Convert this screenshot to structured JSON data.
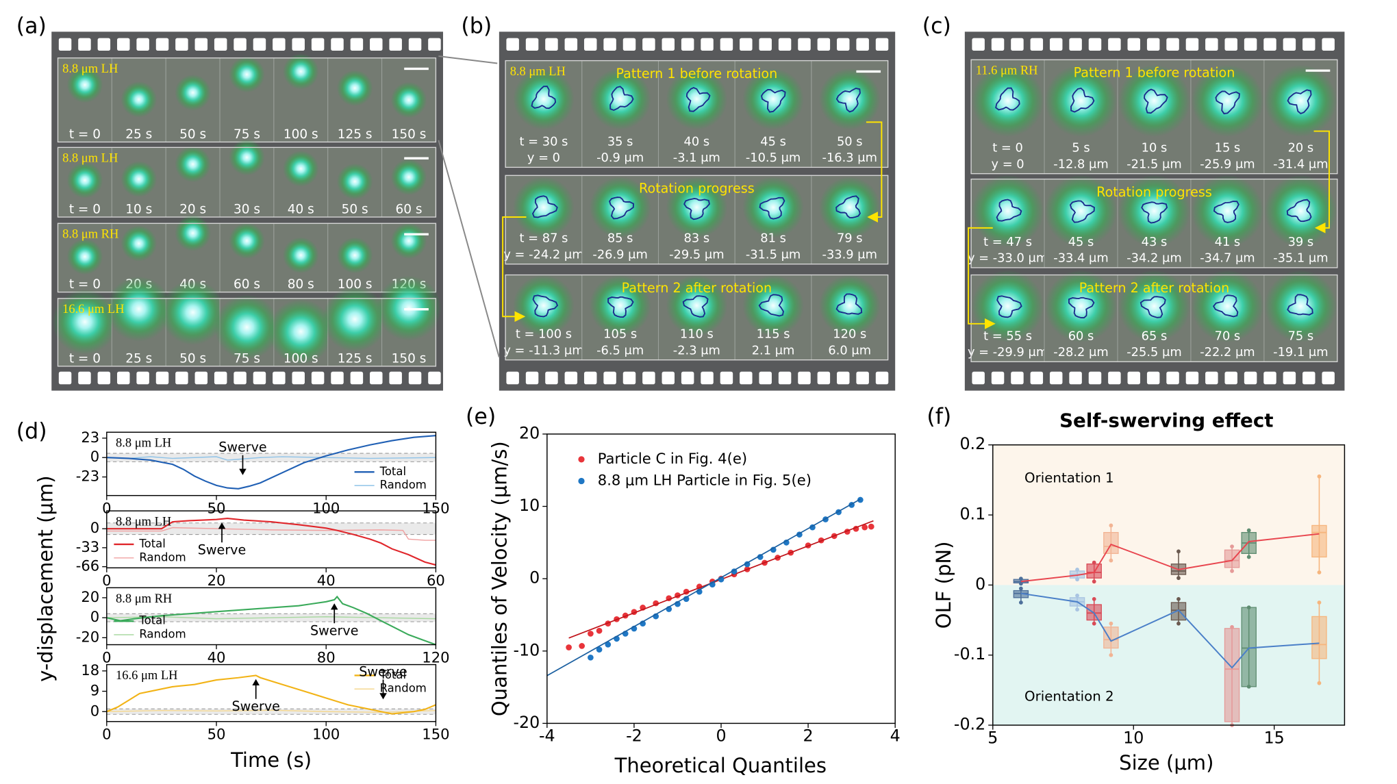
{
  "panel_labels": [
    "(a)",
    "(b)",
    "(c)",
    "(d)",
    "(e)",
    "(f)"
  ],
  "strips": [
    {
      "rows": [
        {
          "label": "8.8 μm LH",
          "times": [
            "t = 0",
            "25 s",
            "50 s",
            "75 s",
            "100 s",
            "125 s",
            "150 s"
          ]
        },
        {
          "label": "8.8 μm LH",
          "times": [
            "t = 0",
            "10 s",
            "20 s",
            "30 s",
            "40 s",
            "50 s",
            "60 s"
          ]
        },
        {
          "label": "8.8 μm RH",
          "times": [
            "t = 0",
            "20 s",
            "40 s",
            "60 s",
            "80 s",
            "100 s",
            "120 s"
          ]
        },
        {
          "label": "16.6 μm LH",
          "times": [
            "t = 0",
            "25 s",
            "50 s",
            "75 s",
            "100 s",
            "125 s",
            "150 s"
          ]
        }
      ]
    },
    {
      "rows": [
        {
          "label": "8.8 μm LH",
          "title": "Pattern 1 before rotation",
          "times": [
            "t = 30 s",
            "35 s",
            "40 s",
            "45 s",
            "50 s"
          ],
          "positions": [
            "y = 0",
            "-0.9 μm",
            "-3.1 μm",
            "-10.5 μm",
            "-16.3 μm"
          ]
        },
        {
          "title": "Rotation progress",
          "times": [
            "t = 87 s",
            "85 s",
            "83 s",
            "81 s",
            "79 s"
          ],
          "positions": [
            "y = -24.2 μm",
            "-26.9 μm",
            "-29.5 μm",
            "-31.5 μm",
            "-33.9 μm"
          ]
        },
        {
          "title": "Pattern 2 after rotation",
          "times": [
            "t = 100 s",
            "105 s",
            "110 s",
            "115 s",
            "120 s"
          ],
          "positions": [
            "y = -11.3 μm",
            "-6.5 μm",
            "-2.3 μm",
            "2.1 μm",
            "6.0 μm"
          ]
        }
      ]
    },
    {
      "rows": [
        {
          "label": "11.6 μm RH",
          "title": "Pattern 1 before rotation",
          "times": [
            "t = 0",
            "5 s",
            "10 s",
            "15 s",
            "20 s"
          ],
          "positions": [
            "y = 0",
            "-12.8 μm",
            "-21.5 μm",
            "-25.9 μm",
            "-31.4 μm"
          ]
        },
        {
          "title": "Rotation progress",
          "times": [
            "t = 47 s",
            "45 s",
            "43 s",
            "41 s",
            "39 s"
          ],
          "positions": [
            "y = -33.0 μm",
            "-33.4 μm",
            "-34.2 μm",
            "-34.7 μm",
            "-35.1 μm"
          ]
        },
        {
          "title": "Pattern 2 after rotation",
          "times": [
            "t = 55 s",
            "60 s",
            "65 s",
            "70 s",
            "75 s"
          ],
          "positions": [
            "y = -29.9 μm",
            "-28.2 μm",
            "-25.5 μm",
            "-22.2 μm",
            "-19.1 μm"
          ]
        }
      ]
    }
  ],
  "chart_data": [
    {
      "type": "line",
      "label": "8.8 μm LH",
      "ylabel": "y-displacement (μm)",
      "xlim": [
        0,
        150
      ],
      "xticks": [
        0,
        50,
        100,
        150
      ],
      "ylim": [
        -45,
        30
      ],
      "yticks": [
        -23,
        0,
        23
      ],
      "band": [
        -5,
        5
      ],
      "legend": "lower right",
      "series": [
        {
          "name": "Total",
          "color": "#1f5fb4",
          "x": [
            0,
            10,
            20,
            30,
            35,
            40,
            45,
            50,
            55,
            60,
            65,
            70,
            80,
            90,
            100,
            110,
            120,
            130,
            140,
            150
          ],
          "values": [
            0,
            -1,
            -3,
            -8,
            -14,
            -22,
            -28,
            -33,
            -36,
            -37,
            -34,
            -30,
            -18,
            -6,
            2,
            9,
            15,
            20,
            24,
            26
          ]
        },
        {
          "name": "Random",
          "color": "#8fc3e8",
          "x": [
            0,
            10,
            20,
            30,
            40,
            50,
            55,
            60,
            70,
            80,
            100,
            120,
            150
          ],
          "values": [
            0,
            -1,
            1,
            -1,
            0,
            1,
            -3,
            -2,
            0,
            1,
            0,
            -1,
            0
          ]
        }
      ],
      "swerves": [
        {
          "text": "Swerve",
          "x": 62,
          "arrow": "down"
        }
      ]
    },
    {
      "type": "line",
      "label": "8.8 μm LH",
      "xlim": [
        0,
        60
      ],
      "xticks": [
        0,
        20,
        40,
        60
      ],
      "ylim": [
        -68,
        31
      ],
      "yticks": [
        -66,
        -33,
        0
      ],
      "band": [
        -10,
        10
      ],
      "legend": "lower left",
      "series": [
        {
          "name": "Total",
          "color": "#e0262b",
          "x": [
            0,
            5,
            10,
            12,
            15,
            20,
            22,
            25,
            30,
            35,
            40,
            42,
            45,
            48,
            50,
            52,
            55,
            58,
            60
          ],
          "values": [
            0,
            0,
            0,
            12,
            14,
            16,
            18,
            15,
            12,
            7,
            1,
            -3,
            -10,
            -18,
            -25,
            -35,
            -45,
            -58,
            -63
          ]
        },
        {
          "name": "Random",
          "color": "#f0a0a0",
          "x": [
            0,
            10,
            12,
            20,
            30,
            40,
            50,
            54,
            55,
            58,
            60
          ],
          "values": [
            -4,
            -4,
            2,
            0,
            -2,
            -3,
            -2,
            -3,
            -18,
            -20,
            -20
          ]
        }
      ],
      "swerves": [
        {
          "text": "Swerve",
          "x": 21,
          "arrow": "up"
        }
      ]
    },
    {
      "type": "line",
      "label": "8.8 μm RH",
      "xlim": [
        0,
        120
      ],
      "xticks": [
        0,
        40,
        80,
        120
      ],
      "ylim": [
        -27,
        30
      ],
      "yticks": [
        -20,
        0,
        20
      ],
      "band": [
        -4,
        4
      ],
      "legend": "lower left",
      "series": [
        {
          "name": "Total",
          "color": "#3aaa5a",
          "x": [
            0,
            5,
            10,
            20,
            30,
            40,
            50,
            60,
            70,
            75,
            80,
            83,
            84,
            86,
            90,
            95,
            100,
            105,
            110,
            115,
            120
          ],
          "values": [
            0,
            -3,
            -1,
            2,
            4,
            6,
            8,
            10,
            12,
            14,
            16,
            18,
            21,
            14,
            10,
            4,
            -3,
            -10,
            -17,
            -22,
            -27
          ]
        },
        {
          "name": "Random",
          "color": "#a8d8a0",
          "x": [
            0,
            20,
            40,
            60,
            80,
            100,
            120
          ],
          "values": [
            0,
            1,
            -1,
            0,
            1,
            0,
            -1
          ]
        }
      ],
      "swerves": [
        {
          "text": "Swerve",
          "x": 83,
          "arrow": "up"
        }
      ]
    },
    {
      "type": "line",
      "label": "16.6 μm LH",
      "xlabel": "Time (s)",
      "xlim": [
        0,
        150
      ],
      "xticks": [
        0,
        50,
        100,
        150
      ],
      "ylim": [
        -4.4,
        20.8
      ],
      "yticks": [
        0,
        9,
        18
      ],
      "band": [
        -1.2,
        1.2
      ],
      "legend": "upper right",
      "series": [
        {
          "name": "Total",
          "color": "#f2b316",
          "x": [
            0,
            5,
            10,
            15,
            20,
            30,
            40,
            50,
            60,
            68,
            70,
            80,
            90,
            100,
            110,
            120,
            125,
            130,
            140,
            145,
            150
          ],
          "values": [
            0,
            2,
            5,
            8,
            9,
            11,
            12,
            14,
            15,
            16,
            15,
            12,
            9,
            6,
            3,
            1,
            0,
            -1,
            0,
            1,
            3
          ]
        },
        {
          "name": "Random",
          "color": "#f5d890",
          "x": [
            0,
            25,
            50,
            75,
            100,
            125,
            150
          ],
          "values": [
            0,
            0.5,
            0.3,
            0.6,
            0,
            -0.3,
            0.5
          ]
        }
      ],
      "swerves": [
        {
          "text": "Swerve",
          "x": 68,
          "arrow": "up"
        },
        {
          "text": "Swerve",
          "x": 126,
          "arrow": "down"
        }
      ]
    },
    {
      "type": "scatter",
      "xlabel": "Theoretical Quantiles",
      "ylabel": "Quantiles of Velocity (μm/s)",
      "xlim": [
        -4,
        4
      ],
      "xticks": [
        -4,
        -2,
        0,
        2,
        4
      ],
      "ylim": [
        -20,
        20
      ],
      "yticks": [
        -20,
        -10,
        0,
        10,
        20
      ],
      "legend": "upper left",
      "series": [
        {
          "name": "Particle C in Fig. 4(e)",
          "color": "#e8343a",
          "x": [
            -3.5,
            -3.2,
            -3.0,
            -2.8,
            -2.6,
            -2.4,
            -2.2,
            -2.0,
            -1.8,
            -1.5,
            -1.2,
            -1.0,
            -0.8,
            -0.5,
            -0.2,
            0,
            0.3,
            0.6,
            1.0,
            1.3,
            1.6,
            2.0,
            2.3,
            2.6,
            2.9,
            3.1,
            3.3,
            3.45
          ],
          "values": [
            -9.5,
            -9.3,
            -7.6,
            -7.2,
            -6.2,
            -5.6,
            -5.1,
            -4.6,
            -4.0,
            -3.4,
            -2.7,
            -2.3,
            -1.8,
            -1.1,
            -0.4,
            0,
            0.6,
            1.3,
            2.2,
            2.9,
            3.6,
            4.6,
            5.3,
            5.9,
            6.5,
            6.9,
            7.1,
            7.2
          ],
          "fit_x": [
            -3.5,
            3.5
          ],
          "fit_y": [
            -8.2,
            8.0
          ]
        },
        {
          "name": "8.8 μm LH Particle in Fig. 5(e)",
          "color": "#1f77c4",
          "x": [
            -3.0,
            -2.8,
            -2.6,
            -2.4,
            -2.2,
            -2.0,
            -1.8,
            -1.5,
            -1.2,
            -1.0,
            -0.8,
            -0.5,
            -0.2,
            0,
            0.3,
            0.6,
            0.9,
            1.2,
            1.5,
            1.8,
            2.1,
            2.4,
            2.7,
            3.0,
            3.2
          ],
          "values": [
            -10.9,
            -9.8,
            -9.1,
            -8.3,
            -7.6,
            -6.9,
            -6.2,
            -5.2,
            -4.2,
            -3.5,
            -2.8,
            -1.8,
            -0.8,
            -0.1,
            1.0,
            2.0,
            3.0,
            4.0,
            5.0,
            6.1,
            7.1,
            8.2,
            9.2,
            10.2,
            10.9
          ],
          "fit_x": [
            -4,
            3.2
          ],
          "fit_y": [
            -13.4,
            11
          ]
        }
      ]
    },
    {
      "type": "box",
      "title": "Self-swerving effect",
      "xlabel": "Size (μm)",
      "ylabel": "OLF (pN)",
      "xlim": [
        5,
        17.5
      ],
      "xticks": [
        5,
        10,
        15
      ],
      "ylim": [
        -0.2,
        0.2
      ],
      "yticks": [
        -0.2,
        -0.1,
        0,
        0.1,
        0.2
      ],
      "annotations": [
        "Orientation 1",
        "Orientation 2"
      ],
      "shading": [
        "#fdf5eb",
        "#e2f5f2"
      ],
      "x": [
        6,
        8,
        8.6,
        9.2,
        11.6,
        13.5,
        14.1,
        16.6
      ],
      "colors": [
        "#4d6f9a",
        "#a9c4e2",
        "#d94a56",
        "#f2b494",
        "#6b5a50",
        "#e59a98",
        "#5f8d71",
        "#f6b57d"
      ],
      "boxes": [
        {
          "q1": [
            0.003,
            0.01,
            0.01,
            0.045,
            0.015,
            0.025,
            0.045,
            0.04
          ],
          "median": [
            0.005,
            0.015,
            0.018,
            0.055,
            0.02,
            0.035,
            0.06,
            0.075
          ],
          "q3": [
            0.008,
            0.02,
            0.03,
            0.075,
            0.03,
            0.05,
            0.075,
            0.085
          ],
          "whislo": [
            0.002,
            0.008,
            0.005,
            0.035,
            0.01,
            0.02,
            0.04,
            0.018
          ],
          "whishi": [
            0.009,
            0.022,
            0.032,
            0.085,
            0.048,
            0.055,
            0.078,
            0.155
          ],
          "mean": [
            0.005,
            0.014,
            0.018,
            0.058,
            0.022,
            0.035,
            0.062,
            0.073
          ],
          "line_color": "#e8454e"
        },
        {
          "q1": [
            -0.018,
            -0.03,
            -0.05,
            -0.09,
            -0.05,
            -0.195,
            -0.145,
            -0.105
          ],
          "median": [
            -0.012,
            -0.024,
            -0.04,
            -0.078,
            -0.036,
            -0.12,
            -0.09,
            -0.085
          ],
          "q3": [
            -0.008,
            -0.018,
            -0.028,
            -0.06,
            -0.025,
            -0.062,
            -0.032,
            -0.045
          ],
          "whislo": [
            -0.025,
            -0.035,
            -0.055,
            -0.1,
            -0.055,
            -0.2,
            -0.145,
            -0.14
          ],
          "whishi": [
            -0.005,
            -0.015,
            -0.02,
            -0.055,
            -0.02,
            -0.06,
            -0.032,
            -0.025
          ],
          "mean": [
            -0.012,
            -0.024,
            -0.04,
            -0.08,
            -0.036,
            -0.118,
            -0.09,
            -0.083
          ],
          "line_color": "#4a7fc8"
        }
      ]
    }
  ]
}
